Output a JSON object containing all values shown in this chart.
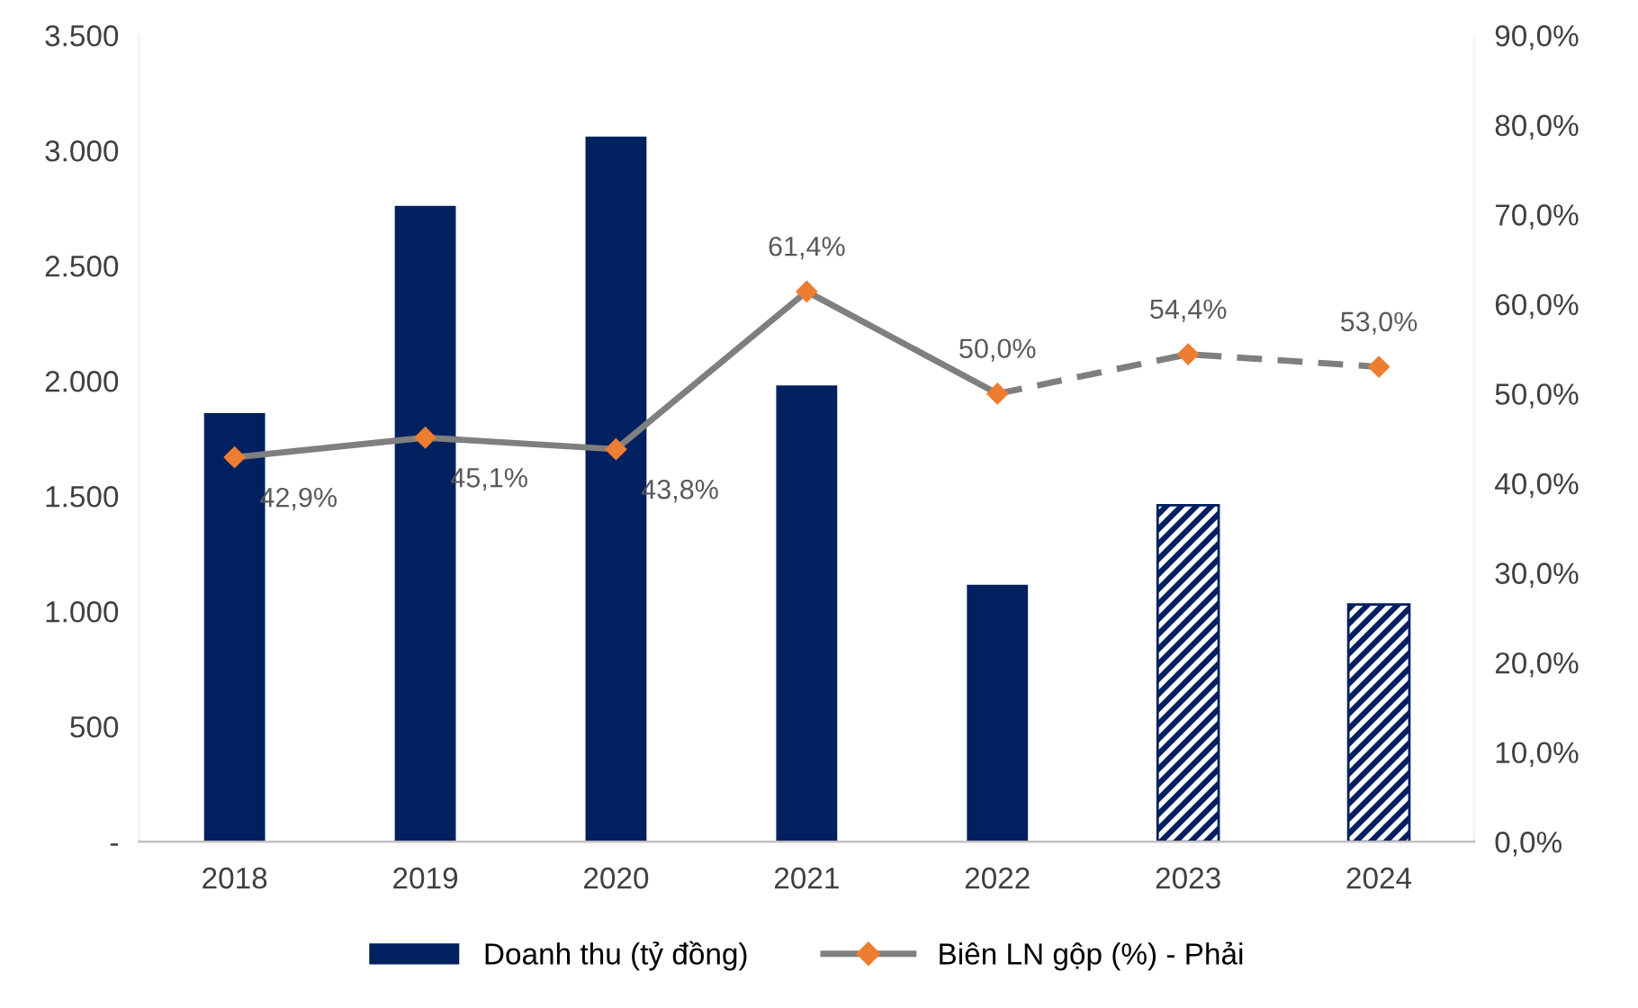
{
  "chart_data": {
    "type": "bar",
    "categories": [
      "2018",
      "2019",
      "2020",
      "2021",
      "2022",
      "2023",
      "2024"
    ],
    "series": [
      {
        "name": "Doanh thu (tỷ đồng)",
        "color": "#002060",
        "values": [
          1860,
          2760,
          3060,
          1980,
          1115,
          null,
          null
        ]
      },
      {
        "color": "#002060",
        "line_style": "dashed",
        "values": [
          null,
          null,
          null,
          null,
          null,
          1460,
          1030
        ]
      },
      {
        "name": "Biên LN gộp (%) - Phải",
        "type": "line",
        "axis": "y2",
        "color": "#7f7f7f",
        "marker": "none",
        "line_style": "solid",
        "values": [
          42.9,
          45.1,
          43.8,
          61.4,
          50.0,
          null,
          null
        ],
        "value_labels": [
          "42,9%",
          "45,1%",
          "43,8%",
          "61,4%",
          "50,0%",
          null,
          null
        ]
      },
      {
        "type": "line",
        "axis": "y2",
        "color": "#7f7f7f",
        "marker": "none",
        "line_style": "dashed",
        "values": [
          null,
          null,
          null,
          null,
          50.0,
          54.4,
          53.0
        ],
        "value_labels": [
          null,
          null,
          null,
          null,
          null,
          "54,4%",
          "53,0%"
        ]
      },
      {
        "type": "scatter",
        "axis": "y2",
        "color": "#ed7d31",
        "marker": "diamond",
        "values": [
          42.9,
          45.1,
          43.8,
          61.4,
          50.0,
          54.4,
          53.0
        ]
      }
    ],
    "ylim": [
      0,
      3500
    ],
    "yticks": [
      {
        "value": 0,
        "label": "-"
      },
      {
        "value": 500,
        "label": "500"
      },
      {
        "value": 1000,
        "label": "1.000"
      },
      {
        "value": 1500,
        "label": "1.500"
      },
      {
        "value": 2000,
        "label": "2.000"
      },
      {
        "value": 2500,
        "label": "2.500"
      },
      {
        "value": 3000,
        "label": "3.000"
      },
      {
        "value": 3500,
        "label": "3.500"
      }
    ],
    "y2lim": [
      0,
      90
    ],
    "y2ticks": [
      {
        "value": 0,
        "label": "0,0%"
      },
      {
        "value": 10,
        "label": "10,0%"
      },
      {
        "value": 20,
        "label": "20,0%"
      },
      {
        "value": 30,
        "label": "30,0%"
      },
      {
        "value": 40,
        "label": "40,0%"
      },
      {
        "value": 50,
        "label": "50,0%"
      },
      {
        "value": 60,
        "label": "60,0%"
      },
      {
        "value": 70,
        "label": "70,0%"
      },
      {
        "value": 80,
        "label": "80,0%"
      },
      {
        "value": 90,
        "label": "90,0%"
      }
    ],
    "grid": false,
    "legend": "bottom"
  }
}
